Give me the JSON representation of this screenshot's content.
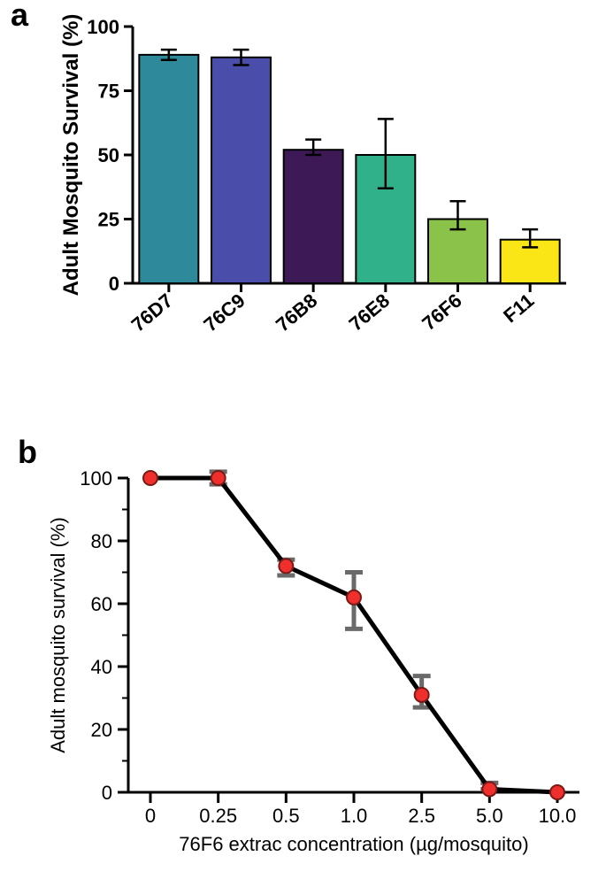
{
  "panel_a": {
    "label": "a",
    "type": "bar",
    "ylabel": "Adult Mosquito Survival (%)",
    "ylim": [
      0,
      100
    ],
    "ytick_step": 25,
    "yticks": [
      0,
      25,
      50,
      75,
      100
    ],
    "categories": [
      "76D7",
      "76C9",
      "76B8",
      "76E8",
      "76F6",
      "F11"
    ],
    "values": [
      89,
      88,
      52,
      50,
      25,
      17
    ],
    "errors_low": [
      2,
      3,
      2,
      13,
      4,
      3
    ],
    "errors_high": [
      2,
      3,
      4,
      14,
      7,
      4
    ],
    "bar_colors": [
      "#2e8a9a",
      "#4a4eaa",
      "#3d1a56",
      "#30b18a",
      "#8ac24a",
      "#fae617"
    ],
    "bar_stroke": "#000000",
    "bar_width": 0.82,
    "error_color": "#000000",
    "axis_color": "#000000",
    "axis_stroke_width": 3,
    "tick_fontsize": 22,
    "label_fontsize": 24,
    "label_fontweight": "bold",
    "xlabel_rotation": -40,
    "background_color": "#ffffff"
  },
  "panel_b": {
    "label": "b",
    "type": "line",
    "ylabel": "Adult mosquito survival (%)",
    "xlabel": "76F6 extrac concentration (µg/mosquito)",
    "ylim": [
      0,
      100
    ],
    "ytick_step": 20,
    "yticks": [
      0,
      20,
      40,
      60,
      80,
      100
    ],
    "x_categories": [
      "0",
      "0.25",
      "0.5",
      "1.0",
      "2.5",
      "5.0",
      "10.0"
    ],
    "values": [
      100,
      100,
      72,
      62,
      31,
      1,
      0
    ],
    "errors_low": [
      0,
      2,
      3,
      10,
      4,
      0,
      0
    ],
    "errors_high": [
      0,
      2,
      2,
      8,
      6,
      2,
      0
    ],
    "line_color": "#000000",
    "line_width": 5,
    "marker_color": "#ef2f2b",
    "marker_stroke": "#7a1a17",
    "marker_radius": 8,
    "error_color": "#6a6a6a",
    "error_width": 5,
    "axis_color": "#000000",
    "axis_stroke_width": 3,
    "tick_fontsize": 22,
    "label_fontsize": 22,
    "background_color": "#ffffff"
  },
  "panel_label_fontsize": 36,
  "panel_label_fontweight": "bold"
}
